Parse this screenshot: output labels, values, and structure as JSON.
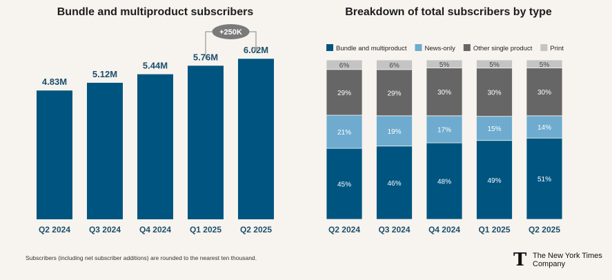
{
  "chart_data": [
    {
      "type": "bar",
      "title": "Bundle and multiproduct subscribers",
      "categories": [
        "Q2 2024",
        "Q3 2024",
        "Q4 2024",
        "Q1 2025",
        "Q2 2025"
      ],
      "values": [
        4.83,
        5.12,
        5.44,
        5.76,
        6.02
      ],
      "value_labels": [
        "4.83M",
        "5.12M",
        "5.44M",
        "5.76M",
        "6.02M"
      ],
      "annotation": {
        "label": "+250K",
        "from": "Q1 2025",
        "to": "Q2 2025"
      },
      "ylim": [
        0,
        7.5
      ],
      "color": "#005580",
      "xlabel": "",
      "ylabel": ""
    },
    {
      "type": "bar",
      "stacked": true,
      "percent": true,
      "title": "Breakdown of total subscribers by type",
      "categories": [
        "Q2 2024",
        "Q3 2024",
        "Q4 2024",
        "Q1 2025",
        "Q2 2025"
      ],
      "legend_position": "top",
      "series": [
        {
          "name": "Bundle and multiproduct",
          "color": "#005580",
          "text_color": "#ffffff",
          "values": [
            45,
            46,
            48,
            49,
            51
          ]
        },
        {
          "name": "News-only",
          "color": "#6eabcf",
          "text_color": "#ffffff",
          "values": [
            21,
            19,
            17,
            15,
            14
          ]
        },
        {
          "name": "Other single product",
          "color": "#666666",
          "text_color": "#ffffff",
          "values": [
            29,
            29,
            30,
            30,
            30
          ]
        },
        {
          "name": "Print",
          "color": "#c4c4c4",
          "text_color": "#444444",
          "values": [
            6,
            6,
            5,
            5,
            5
          ]
        }
      ]
    }
  ],
  "footnote": "Subscribers (including net subscriber additions) are rounded to the nearest ten thousand.",
  "brand": {
    "line1": "The New York Times",
    "line2": "Company",
    "logo_letter": "T"
  }
}
